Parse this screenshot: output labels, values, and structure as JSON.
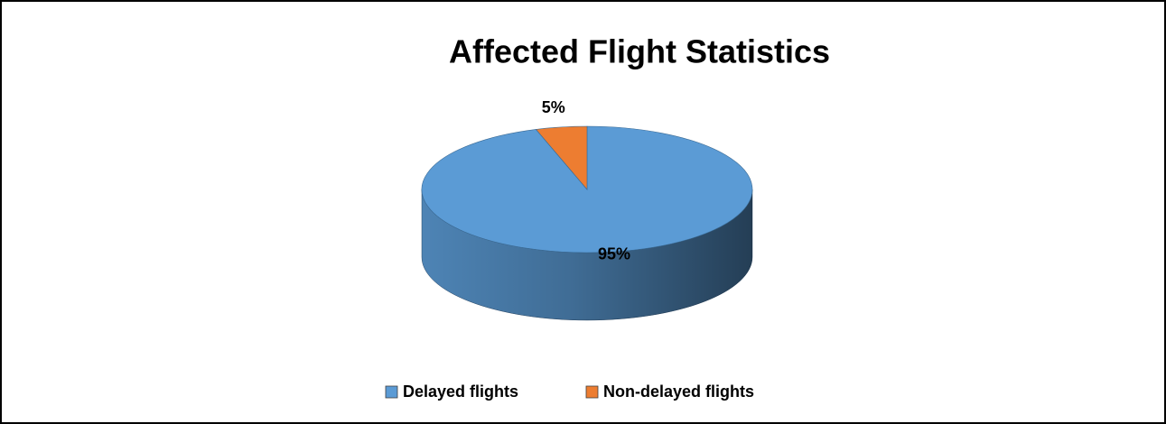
{
  "chart_data": {
    "type": "pie",
    "title": "Affected Flight Statistics",
    "categories": [
      "Delayed flights",
      "Non-delayed flights"
    ],
    "values": [
      95,
      5
    ],
    "value_labels": [
      "95%",
      "5%"
    ],
    "colors": [
      "#5b9bd5",
      "#ed7d31"
    ]
  }
}
